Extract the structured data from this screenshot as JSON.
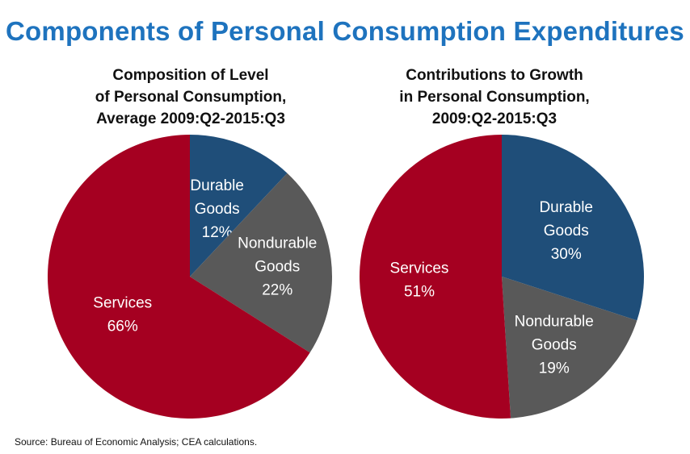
{
  "title": "Components of Personal Consumption Expenditures",
  "source": "Source: Bureau of Economic Analysis; CEA calculations.",
  "colors": {
    "title": "#1e73be",
    "services": "#a50021",
    "durable": "#1f4e79",
    "nondurable": "#595959"
  },
  "chart_data": [
    {
      "type": "pie",
      "title_lines": [
        "Composition of Level",
        "of Personal Consumption,",
        "Average 2009:Q2-2015:Q3"
      ],
      "slices": [
        {
          "label_lines": [
            "Durable",
            "Goods",
            "12%"
          ],
          "value": 12,
          "color": "#1f4e79"
        },
        {
          "label_lines": [
            "Nondurable",
            "Goods",
            "22%"
          ],
          "value": 22,
          "color": "#595959"
        },
        {
          "label_lines": [
            "Services",
            "66%"
          ],
          "value": 66,
          "color": "#a50021"
        }
      ]
    },
    {
      "type": "pie",
      "title_lines": [
        "Contributions to Growth",
        "in Personal Consumption,",
        "2009:Q2-2015:Q3"
      ],
      "slices": [
        {
          "label_lines": [
            "Durable",
            "Goods",
            "30%"
          ],
          "value": 30,
          "color": "#1f4e79"
        },
        {
          "label_lines": [
            "Nondurable",
            "Goods",
            "19%"
          ],
          "value": 19,
          "color": "#595959"
        },
        {
          "label_lines": [
            "Services",
            "51%"
          ],
          "value": 51,
          "color": "#a50021"
        }
      ]
    }
  ]
}
